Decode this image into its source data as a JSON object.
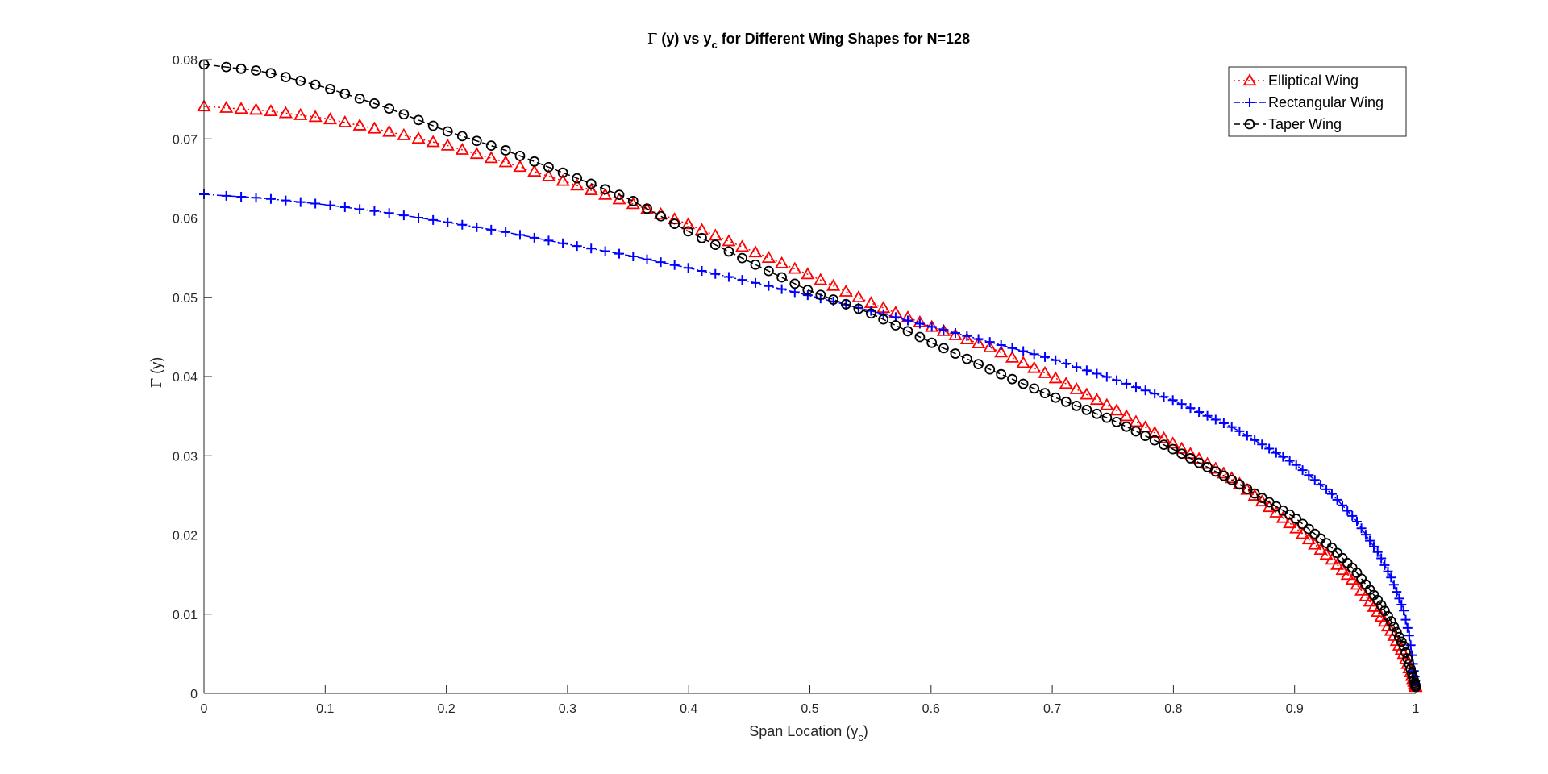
{
  "chart_data": {
    "type": "line",
    "title": {
      "gamma": "Γ",
      "pre": " (y) vs y",
      "sub": "c",
      "post": " for Different Wing Shapes for N=128"
    },
    "xlabel": {
      "pre": "Span Location (y",
      "sub": "c",
      "post": ")"
    },
    "ylabel": {
      "gamma": "Γ",
      "rest": " (y)"
    },
    "xlim": [
      0,
      1
    ],
    "ylim": [
      0,
      0.08
    ],
    "xticks": [
      0,
      0.1,
      0.2,
      0.3,
      0.4,
      0.5,
      0.6,
      0.7,
      0.8,
      0.9,
      1
    ],
    "yticks": [
      0,
      0.01,
      0.02,
      0.03,
      0.04,
      0.05,
      0.06,
      0.07,
      0.08
    ],
    "xtick_labels": [
      "0",
      "0.1",
      "0.2",
      "0.3",
      "0.4",
      "0.5",
      "0.6",
      "0.7",
      "0.8",
      "0.9",
      "1"
    ],
    "ytick_labels": [
      "0",
      "0.01",
      "0.02",
      "0.03",
      "0.04",
      "0.05",
      "0.06",
      "0.07",
      "0.08"
    ],
    "grid": false,
    "legend_position": "top-right",
    "series": [
      {
        "name": "Elliptical Wing",
        "color": "#ff0000",
        "line_style": "dotted",
        "marker": "triangle",
        "x": [
          0,
          0.05,
          0.1,
          0.15,
          0.2,
          0.25,
          0.3,
          0.35,
          0.4,
          0.45,
          0.5,
          0.55,
          0.6,
          0.65,
          0.7,
          0.75,
          0.8,
          0.85,
          0.9,
          0.93,
          0.95,
          0.97,
          0.98,
          0.99,
          0.995,
          1.0
        ],
        "y": [
          0.0741,
          0.0736,
          0.0726,
          0.071,
          0.0692,
          0.067,
          0.0645,
          0.062,
          0.0592,
          0.056,
          0.0528,
          0.0493,
          0.0463,
          0.0436,
          0.04,
          0.036,
          0.0315,
          0.027,
          0.021,
          0.017,
          0.014,
          0.01,
          0.0078,
          0.005,
          0.003,
          0.0008
        ]
      },
      {
        "name": "Rectangular Wing",
        "color": "#0000ff",
        "line_style": "dashdot",
        "marker": "plus",
        "x": [
          0,
          0.05,
          0.1,
          0.15,
          0.2,
          0.25,
          0.3,
          0.35,
          0.4,
          0.45,
          0.5,
          0.55,
          0.6,
          0.65,
          0.7,
          0.75,
          0.8,
          0.85,
          0.9,
          0.93,
          0.95,
          0.97,
          0.98,
          0.99,
          0.995,
          1.0
        ],
        "y": [
          0.063,
          0.0625,
          0.0617,
          0.0607,
          0.0595,
          0.0582,
          0.0567,
          0.0553,
          0.0537,
          0.052,
          0.0502,
          0.0483,
          0.0463,
          0.0443,
          0.0422,
          0.0397,
          0.037,
          0.0335,
          0.029,
          0.0253,
          0.022,
          0.0175,
          0.0145,
          0.0105,
          0.007,
          0.001
        ]
      },
      {
        "name": "Taper Wing",
        "color": "#000000",
        "line_style": "dashed",
        "marker": "circle",
        "x": [
          0,
          0.05,
          0.1,
          0.15,
          0.2,
          0.25,
          0.3,
          0.35,
          0.4,
          0.45,
          0.5,
          0.55,
          0.6,
          0.65,
          0.7,
          0.75,
          0.8,
          0.85,
          0.9,
          0.93,
          0.95,
          0.97,
          0.98,
          0.99,
          0.995,
          1.0
        ],
        "y": [
          0.0794,
          0.0785,
          0.0765,
          0.074,
          0.071,
          0.0685,
          0.0655,
          0.0625,
          0.0583,
          0.0545,
          0.0508,
          0.048,
          0.0443,
          0.0408,
          0.0375,
          0.0345,
          0.0308,
          0.0268,
          0.0222,
          0.0185,
          0.0155,
          0.0115,
          0.009,
          0.006,
          0.0035,
          0.0008
        ]
      }
    ]
  }
}
